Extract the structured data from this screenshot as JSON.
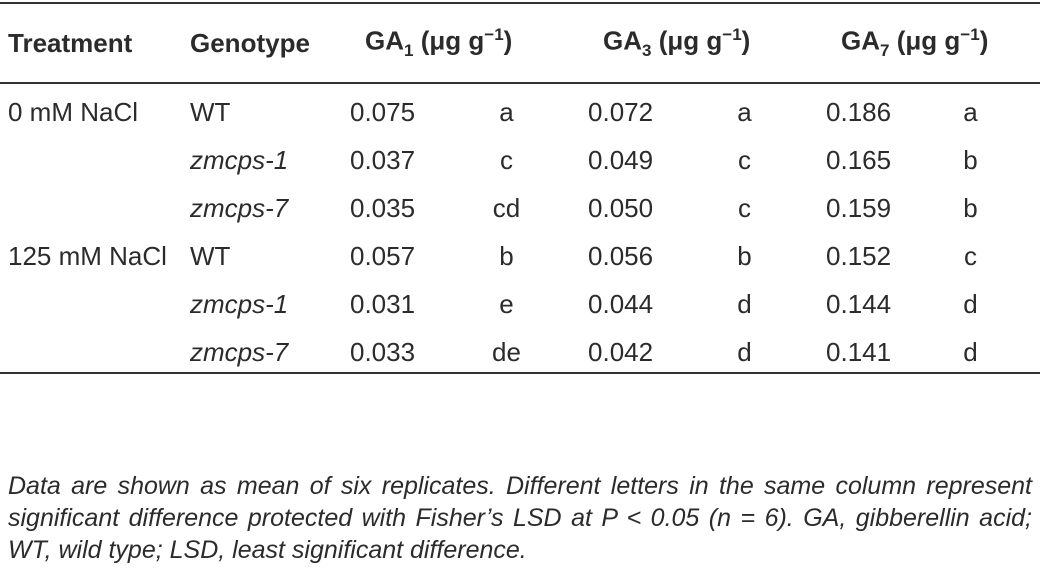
{
  "table": {
    "headers": [
      {
        "text": "Treatment"
      },
      {
        "text": "Genotype"
      },
      {
        "base": "GA",
        "sub": "1",
        "unit": "(μg g",
        "sup": "−1",
        "close": ")"
      },
      {
        "base": "GA",
        "sub": "3",
        "unit": "(μg g",
        "sup": "−1",
        "close": ")"
      },
      {
        "base": "GA",
        "sub": "7",
        "unit": "(μg g",
        "sup": "−1",
        "close": ")"
      }
    ],
    "rows": [
      {
        "treatment": "0 mM NaCl",
        "genotype": "WT",
        "cells": [
          [
            "0.075",
            "a"
          ],
          [
            "0.072",
            "a"
          ],
          [
            "0.186",
            "a"
          ]
        ]
      },
      {
        "genotype": "zmcps-1",
        "italic": true,
        "cells": [
          [
            "0.037",
            "c"
          ],
          [
            "0.049",
            "c"
          ],
          [
            "0.165",
            "b"
          ]
        ]
      },
      {
        "genotype": "zmcps-7",
        "italic": true,
        "cells": [
          [
            "0.035",
            "cd"
          ],
          [
            "0.050",
            "c"
          ],
          [
            "0.159",
            "b"
          ]
        ]
      },
      {
        "treatment": "125 mM NaCl",
        "genotype": "WT",
        "cells": [
          [
            "0.057",
            "b"
          ],
          [
            "0.056",
            "b"
          ],
          [
            "0.152",
            "c"
          ]
        ]
      },
      {
        "genotype": "zmcps-1",
        "italic": true,
        "cells": [
          [
            "0.031",
            "e"
          ],
          [
            "0.044",
            "d"
          ],
          [
            "0.144",
            "d"
          ]
        ]
      },
      {
        "genotype": "zmcps-7",
        "italic": true,
        "cells": [
          [
            "0.033",
            "de"
          ],
          [
            "0.042",
            "d"
          ],
          [
            "0.141",
            "d"
          ]
        ]
      }
    ],
    "footnote": "Data are shown as mean of six replicates. Different letters in the same column represent significant difference protected with Fisher’s LSD at P < 0.05 (n = 6). GA, gibberellin acid; WT, wild type; LSD, least significant difference."
  }
}
